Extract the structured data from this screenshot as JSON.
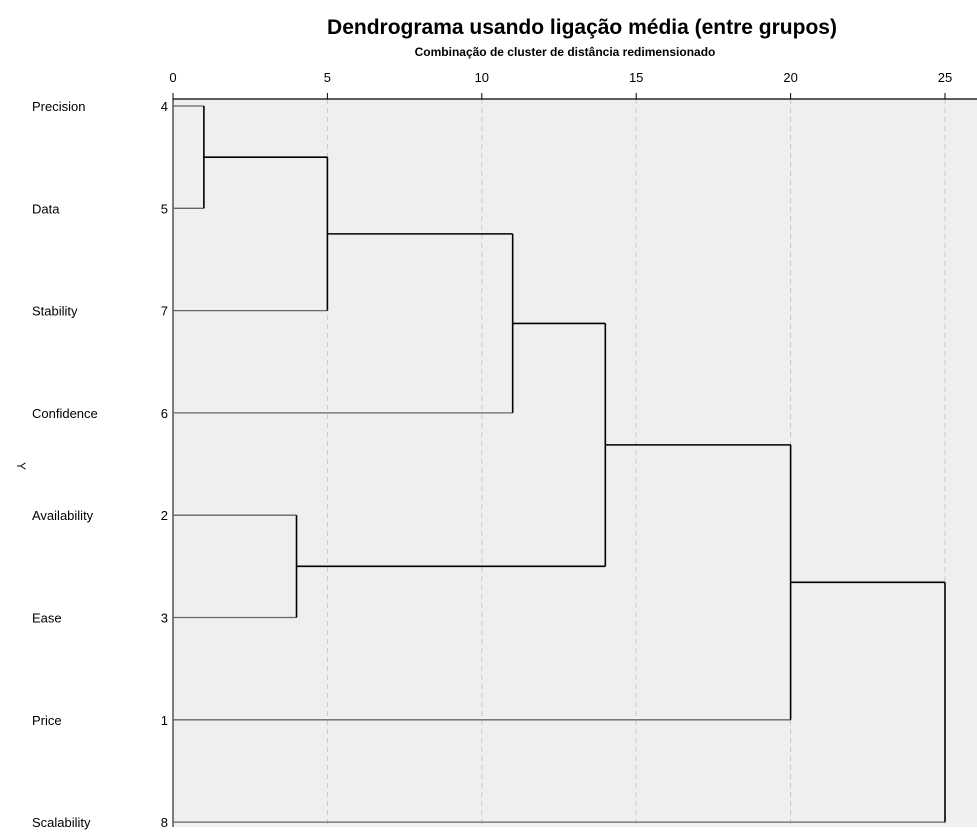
{
  "chart_data": {
    "type": "dendrogram",
    "title": "Dendrograma usando ligação média (entre grupos)",
    "subtitle": "Combinação de cluster de distância redimensionado",
    "ylabel": "Y",
    "xlim": [
      0,
      25
    ],
    "x_ticks": [
      0,
      5,
      10,
      15,
      20,
      25
    ],
    "grid": "vertical dashed",
    "leaves": [
      {
        "label": "Precision",
        "number": "4"
      },
      {
        "label": "Data",
        "number": "5"
      },
      {
        "label": "Stability",
        "number": "7"
      },
      {
        "label": "Confidence",
        "number": "6"
      },
      {
        "label": "Availability",
        "number": "2"
      },
      {
        "label": "Ease",
        "number": "3"
      },
      {
        "label": "Price",
        "number": "1"
      },
      {
        "label": "Scalability",
        "number": "8"
      }
    ],
    "merges": [
      {
        "left": "Precision",
        "right": "Data",
        "distance": 1
      },
      {
        "left": "Availability",
        "right": "Ease",
        "distance": 4
      },
      {
        "left": "C1",
        "right": "Stability",
        "distance": 5
      },
      {
        "left": "C3",
        "right": "Confidence",
        "distance": 11
      },
      {
        "left": "C4",
        "right": "C2",
        "distance": 14
      },
      {
        "left": "C5",
        "right": "Price",
        "distance": 20
      },
      {
        "left": "C6",
        "right": "Scalability",
        "distance": 25
      }
    ],
    "colors": {
      "plot_background": "#efefef",
      "lines": "#000000",
      "leaf_stub": "#666666",
      "grid": "#c8c8c8"
    }
  }
}
